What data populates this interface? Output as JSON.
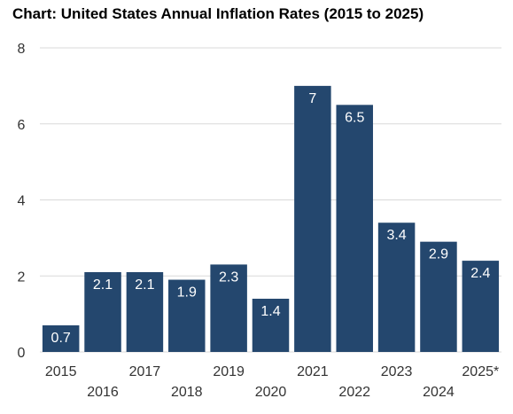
{
  "chart_data": {
    "type": "bar",
    "title": "Chart: United States Annual Inflation Rates (2015 to 2025)",
    "categories": [
      "2015",
      "2016",
      "2017",
      "2018",
      "2019",
      "2020",
      "2021",
      "2022",
      "2023",
      "2024",
      "2025*"
    ],
    "values": [
      0.7,
      2.1,
      2.1,
      1.9,
      2.3,
      1.4,
      7,
      6.5,
      3.4,
      2.9,
      2.4
    ],
    "data_labels": [
      "0.7",
      "2.1",
      "2.1",
      "1.9",
      "2.3",
      "1.4",
      "7",
      "6.5",
      "3.4",
      "2.9",
      "2.4"
    ],
    "y_ticks": [
      "0",
      "2",
      "4",
      "6",
      "8"
    ],
    "ylim": [
      0,
      8
    ],
    "xlabel": "",
    "ylabel": "",
    "grid": true,
    "legend": "none",
    "colors": {
      "bar": "#24476e",
      "grid": "#d9d9d9",
      "data_label": "#ffffff",
      "tick_label": "#333333"
    }
  }
}
